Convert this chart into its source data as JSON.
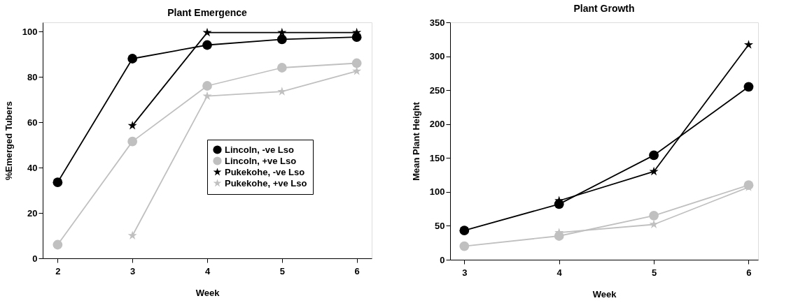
{
  "chart_data": [
    {
      "type": "line",
      "title": "Plant Emergence",
      "xlabel": "Week",
      "ylabel": "%Emerged Tubers",
      "x": [
        2,
        3,
        4,
        5,
        6
      ],
      "xlim": [
        1.8,
        6.2
      ],
      "xticks": [
        2,
        3,
        4,
        5,
        6
      ],
      "ylim": [
        0,
        104
      ],
      "yticks": [
        0,
        20,
        40,
        60,
        80,
        100
      ],
      "grid": false,
      "legend": "bottom right",
      "line_style": "solid",
      "series": [
        {
          "name": "Lincoln, -ve Lso",
          "color": "#000000",
          "marker": "circle",
          "values": [
            33.5,
            88,
            94,
            96.5,
            97.5
          ]
        },
        {
          "name": "Lincoln, +ve Lso",
          "color": "#c0c0c0",
          "marker": "circle",
          "values": [
            6,
            51.5,
            76,
            84,
            86
          ]
        },
        {
          "name": "Pukekohe, -ve Lso",
          "color": "#000000",
          "marker": "star",
          "values": [
            null,
            58.5,
            99.5,
            99.5,
            99.5
          ]
        },
        {
          "name": "Pukekohe, +ve Lso",
          "color": "#c0c0c0",
          "marker": "star",
          "values": [
            null,
            10,
            71.5,
            73.5,
            82.5
          ]
        }
      ]
    },
    {
      "type": "line",
      "title": "Plant Growth",
      "xlabel": "Week",
      "ylabel": "Mean Plant Height",
      "x": [
        3,
        4,
        5,
        6
      ],
      "xlim": [
        2.85,
        6.1
      ],
      "xticks": [
        3,
        4,
        5,
        6
      ],
      "ylim": [
        0,
        350
      ],
      "yticks": [
        0,
        50,
        100,
        150,
        200,
        250,
        300,
        350
      ],
      "grid": false,
      "legend": false,
      "line_style": "solid",
      "series": [
        {
          "color": "#000000",
          "marker": "circle",
          "values": [
            43,
            82,
            154,
            255
          ]
        },
        {
          "color": "#c0c0c0",
          "marker": "circle",
          "values": [
            20,
            35,
            65,
            110
          ]
        },
        {
          "color": "#000000",
          "marker": "star",
          "values": [
            null,
            87,
            130,
            317
          ]
        },
        {
          "color": "#c0c0c0",
          "marker": "star",
          "values": [
            null,
            40,
            52,
            107
          ]
        }
      ]
    }
  ]
}
